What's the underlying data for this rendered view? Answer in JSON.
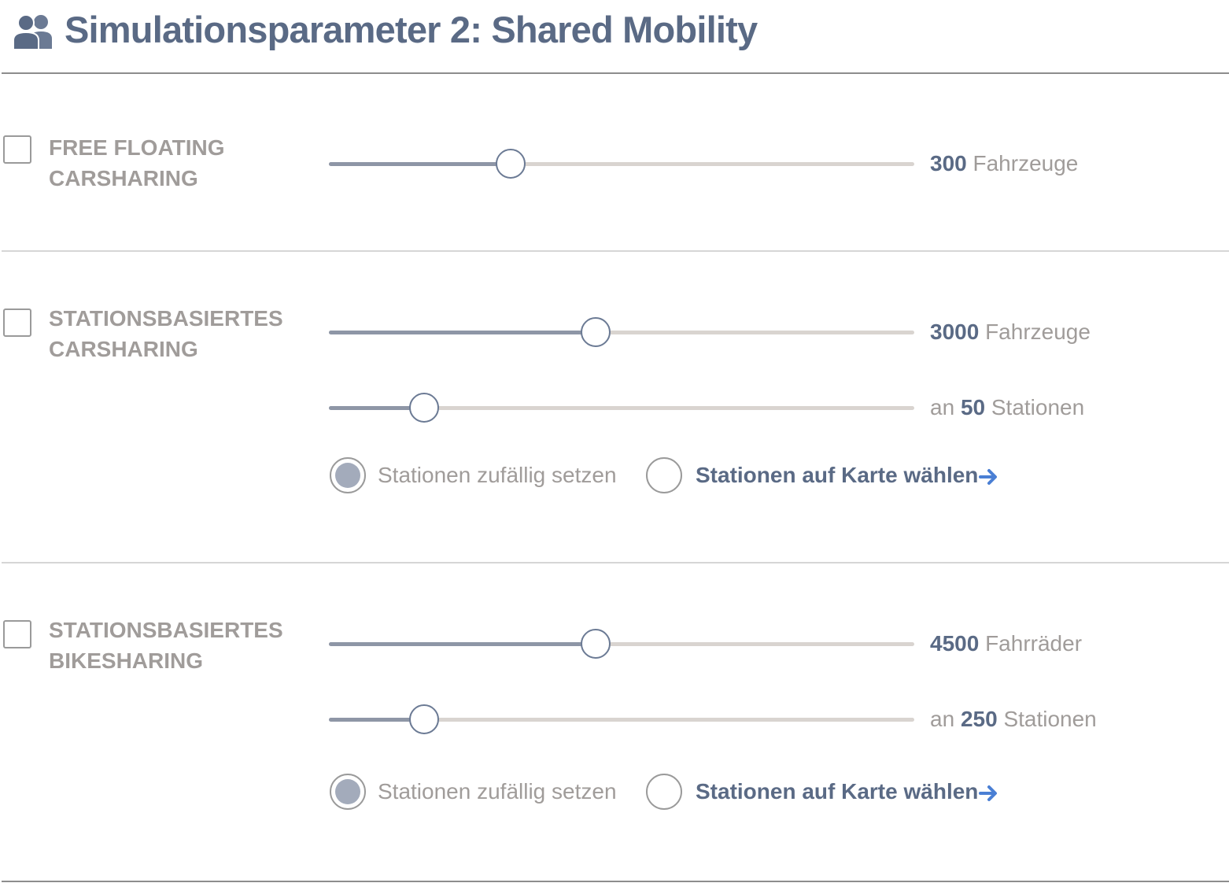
{
  "header": {
    "title": "Simulationsparameter 2: Shared Mobility",
    "icon": "users-icon"
  },
  "colors": {
    "primary": "#5a6a85",
    "muted_text": "#a09c9a",
    "slider_fill": "#8e96a6",
    "slider_track": "#d9d4d0",
    "radio_selected": "#a3abbb",
    "arrow": "#4a7fd4"
  },
  "sections": [
    {
      "label_line1": "FREE FLOATING",
      "label_line2": "CARSHARING",
      "checked": false,
      "sliders": [
        {
          "value": "300",
          "suffix": "Fahrzeuge",
          "fraction": 0.31
        }
      ]
    },
    {
      "label_line1": "STATIONSBASIERTES",
      "label_line2": "CARSHARING",
      "checked": false,
      "sliders": [
        {
          "value": "3000",
          "suffix": "Fahrzeuge",
          "fraction": 0.455
        },
        {
          "prefix": "an",
          "value": "50",
          "suffix": "Stationen",
          "fraction": 0.162
        }
      ],
      "radio_random": "Stationen zufällig setzen",
      "radio_map": "Stationen auf Karte wählen",
      "selected": "random"
    },
    {
      "label_line1": "STATIONSBASIERTES",
      "label_line2": "BIKESHARING",
      "checked": false,
      "sliders": [
        {
          "value": "4500",
          "suffix": "Fahrräder",
          "fraction": 0.455
        },
        {
          "prefix": "an",
          "value": "250",
          "suffix": "Stationen",
          "fraction": 0.162
        }
      ],
      "radio_random": "Stationen zufällig setzen",
      "radio_map": "Stationen auf Karte wählen",
      "selected": "random"
    }
  ]
}
